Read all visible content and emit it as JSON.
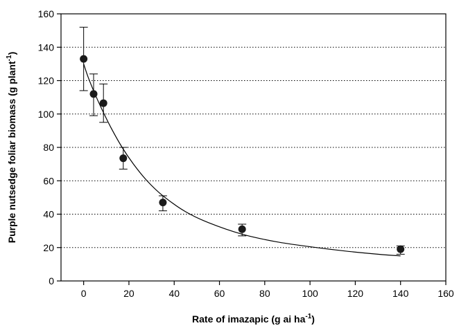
{
  "chart_data": {
    "type": "scatter",
    "xlabel": "Rate of imazapic (g ai ha",
    "xlabel_sup": "-1",
    "xlabel_end": ")",
    "ylabel": "Purple nutsedge foliar biomass (g plant",
    "ylabel_sup": "-1",
    "ylabel_end": ")",
    "xlim": [
      -10,
      160
    ],
    "ylim": [
      0,
      160
    ],
    "xticks": [
      0,
      20,
      40,
      60,
      80,
      100,
      120,
      140,
      160
    ],
    "yticks": [
      0,
      20,
      40,
      60,
      80,
      100,
      120,
      140,
      160
    ],
    "grid": "horizontal dotted",
    "points": [
      {
        "x": 0,
        "y": 133,
        "err_low": 114,
        "err_high": 152
      },
      {
        "x": 4.4,
        "y": 112,
        "err_low": 99,
        "err_high": 124
      },
      {
        "x": 8.75,
        "y": 106.5,
        "err_low": 95,
        "err_high": 118
      },
      {
        "x": 17.5,
        "y": 73.5,
        "err_low": 67,
        "err_high": 80
      },
      {
        "x": 35,
        "y": 47,
        "err_low": 42,
        "err_high": 51
      },
      {
        "x": 70,
        "y": 31,
        "err_low": 27,
        "err_high": 34
      },
      {
        "x": 140,
        "y": 19,
        "err_low": 16,
        "err_high": 21
      }
    ],
    "fit_curve": {
      "x": [
        0,
        2,
        5,
        8,
        12,
        17,
        22,
        28,
        35,
        45,
        55,
        70,
        85,
        100,
        115,
        130,
        140
      ],
      "y": [
        130,
        122,
        112,
        103,
        92,
        80,
        70,
        60,
        51,
        41.5,
        35,
        28,
        23.5,
        20.5,
        18,
        16,
        15
      ]
    },
    "colors": {
      "marker": "#1a1a1a",
      "line": "#000000",
      "grid": "#000000"
    }
  }
}
